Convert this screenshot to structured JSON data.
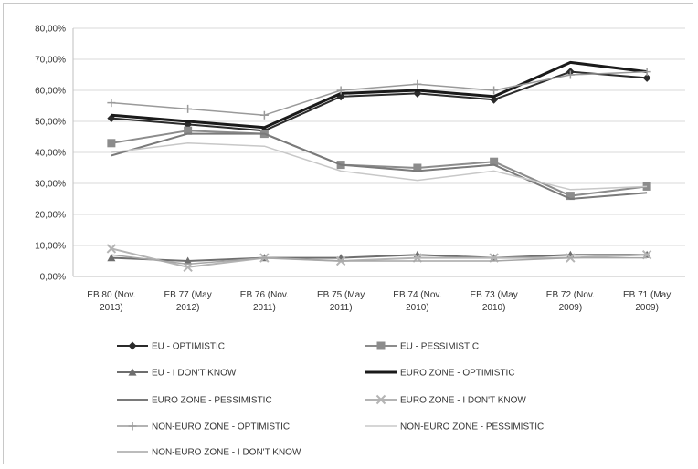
{
  "chart_data": {
    "type": "line",
    "ylim": [
      0,
      80
    ],
    "y_ticks": [
      "0,00%",
      "10,00%",
      "20,00%",
      "30,00%",
      "40,00%",
      "50,00%",
      "60,00%",
      "70,00%",
      "80,00%"
    ],
    "y_tick_values": [
      0,
      10,
      20,
      30,
      40,
      50,
      60,
      70,
      80
    ],
    "categories": [
      [
        "EB 80 (Nov.",
        "2013)"
      ],
      [
        "EB 77 (May",
        "2012)"
      ],
      [
        "EB 76 (Nov.",
        "2011)"
      ],
      [
        "EB 75 (May",
        "2011)"
      ],
      [
        "EB 74 (Nov.",
        "2010)"
      ],
      [
        "EB 73 (May",
        "2010)"
      ],
      [
        "EB 72 (Nov.",
        "2009)"
      ],
      [
        "EB 71 (May",
        "2009)"
      ]
    ],
    "grid": true,
    "legend_position": "bottom",
    "series": [
      {
        "name": "EU - OPTIMISTIC",
        "values": [
          51,
          49,
          47,
          58,
          59,
          57,
          66,
          64
        ],
        "color": "#2b2b2b",
        "marker": "diamond",
        "width": 2
      },
      {
        "name": "EU - PESSIMISTIC",
        "values": [
          43,
          47,
          46,
          36,
          35,
          37,
          26,
          29
        ],
        "color": "#8c8c8c",
        "marker": "square",
        "width": 2
      },
      {
        "name": "EU - I DON'T KNOW",
        "values": [
          6,
          5,
          6,
          6,
          7,
          6,
          7,
          7
        ],
        "color": "#6e6e6e",
        "marker": "triangle",
        "width": 2
      },
      {
        "name": "EURO ZONE - OPTIMISTIC",
        "values": [
          52,
          50,
          48,
          59,
          60,
          58,
          69,
          66
        ],
        "color": "#1a1a1a",
        "marker": "none",
        "width": 3
      },
      {
        "name": "EURO ZONE - PESSIMISTIC",
        "values": [
          39,
          46,
          46,
          36,
          34,
          36,
          25,
          27
        ],
        "color": "#7a7a7a",
        "marker": "none",
        "width": 2
      },
      {
        "name": "EURO ZONE - I DON'T KNOW",
        "values": [
          9,
          3,
          6,
          5,
          6,
          6,
          6,
          7
        ],
        "color": "#b4b4b4",
        "marker": "x",
        "width": 2
      },
      {
        "name": "NON-EURO ZONE - OPTIMISTIC",
        "values": [
          56,
          54,
          52,
          60,
          62,
          60,
          65,
          66
        ],
        "color": "#9a9a9a",
        "marker": "plus",
        "width": 1.5
      },
      {
        "name": "NON-EURO ZONE - PESSIMISTIC",
        "values": [
          40,
          43,
          42,
          34,
          31,
          34,
          28,
          29
        ],
        "color": "#c8c8c8",
        "marker": "none",
        "width": 1.5
      },
      {
        "name": "NON-EURO ZONE - I DON'T KNOW",
        "values": [
          7,
          4,
          6,
          5,
          5,
          5,
          6,
          6
        ],
        "color": "#a6a6a6",
        "marker": "none",
        "width": 1.5
      }
    ]
  }
}
